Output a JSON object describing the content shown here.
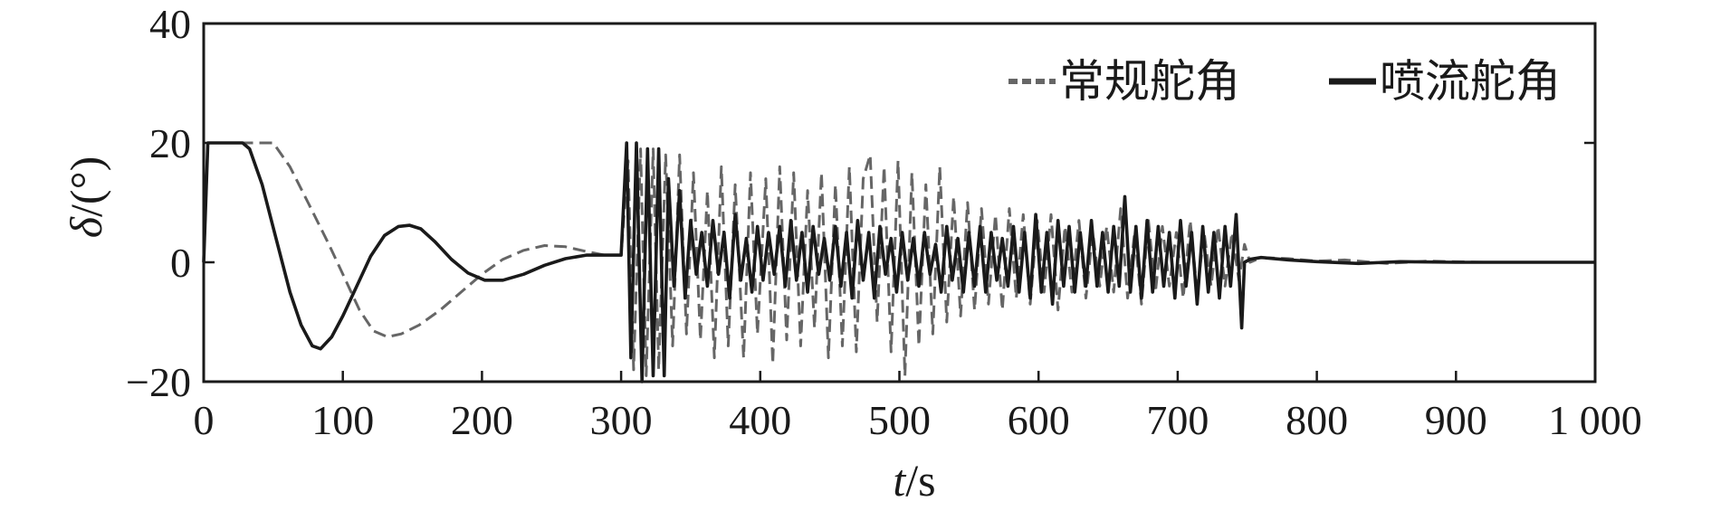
{
  "chart_data": {
    "type": "line",
    "xlabel": {
      "var": "t",
      "unit": "/s"
    },
    "ylabel": {
      "var": "δ",
      "unit": "/(°)"
    },
    "xlim": [
      0,
      1000
    ],
    "ylim": [
      -20,
      40
    ],
    "x_ticks": [
      0,
      100,
      200,
      300,
      400,
      500,
      600,
      700,
      800,
      900,
      1000
    ],
    "x_tick_labels": [
      "0",
      "100",
      "200",
      "300",
      "400",
      "500",
      "600",
      "700",
      "800",
      "900",
      "1 000"
    ],
    "y_ticks": [
      -20,
      0,
      20,
      40
    ],
    "y_tick_labels": [
      "−20",
      "0",
      "20",
      "40"
    ],
    "grid": false,
    "legend_position": "top-right",
    "series": [
      {
        "name": "常规舵角",
        "style": "dashed",
        "color": "#666666",
        "points": [
          [
            0,
            0
          ],
          [
            3,
            20
          ],
          [
            45,
            20
          ],
          [
            50,
            20
          ],
          [
            62,
            16
          ],
          [
            75,
            10
          ],
          [
            90,
            3
          ],
          [
            102,
            -3
          ],
          [
            112,
            -8
          ],
          [
            122,
            -11.5
          ],
          [
            132,
            -12.5
          ],
          [
            142,
            -12
          ],
          [
            155,
            -10.5
          ],
          [
            170,
            -8
          ],
          [
            185,
            -5
          ],
          [
            200,
            -2
          ],
          [
            215,
            0.5
          ],
          [
            230,
            2
          ],
          [
            245,
            2.8
          ],
          [
            260,
            2.6
          ],
          [
            275,
            1.8
          ],
          [
            288,
            1.2
          ],
          [
            300,
            1.2
          ],
          [
            305,
            17
          ],
          [
            309,
            -18
          ],
          [
            314,
            19
          ],
          [
            318,
            -19
          ],
          [
            323,
            19
          ],
          [
            327,
            -18
          ],
          [
            332,
            18
          ],
          [
            337,
            -14
          ],
          [
            342,
            18
          ],
          [
            347,
            -12
          ],
          [
            352,
            15
          ],
          [
            357,
            -13
          ],
          [
            362,
            12
          ],
          [
            367,
            -16
          ],
          [
            372,
            16
          ],
          [
            377,
            -14
          ],
          [
            382,
            13
          ],
          [
            388,
            -16
          ],
          [
            393,
            15
          ],
          [
            398,
            -12
          ],
          [
            404,
            14
          ],
          [
            409,
            -17
          ],
          [
            414,
            16
          ],
          [
            419,
            -13
          ],
          [
            424,
            15
          ],
          [
            429,
            -14
          ],
          [
            434,
            12
          ],
          [
            439,
            -11
          ],
          [
            444,
            15
          ],
          [
            449,
            -16
          ],
          [
            454,
            13
          ],
          [
            459,
            -14
          ],
          [
            464,
            16
          ],
          [
            469,
            -15
          ],
          [
            474,
            14
          ],
          [
            479,
            18
          ],
          [
            484,
            -10
          ],
          [
            489,
            16
          ],
          [
            494,
            -15
          ],
          [
            499,
            17
          ],
          [
            504,
            -19
          ],
          [
            509,
            15
          ],
          [
            514,
            -14
          ],
          [
            519,
            13
          ],
          [
            524,
            -12
          ],
          [
            529,
            16
          ],
          [
            534,
            -10
          ],
          [
            539,
            11
          ],
          [
            544,
            -9
          ],
          [
            549,
            10
          ],
          [
            554,
            -8
          ],
          [
            559,
            9
          ],
          [
            564,
            -7
          ],
          [
            569,
            8
          ],
          [
            574,
            -8
          ],
          [
            579,
            9
          ],
          [
            584,
            -6
          ],
          [
            589,
            8
          ],
          [
            594,
            -7
          ],
          [
            599,
            7
          ],
          [
            604,
            -5
          ],
          [
            609,
            8
          ],
          [
            614,
            -8
          ],
          [
            619,
            6
          ],
          [
            624,
            -5
          ],
          [
            629,
            7
          ],
          [
            634,
            -6
          ],
          [
            639,
            5
          ],
          [
            644,
            -4
          ],
          [
            649,
            6
          ],
          [
            654,
            -5
          ],
          [
            659,
            9
          ],
          [
            664,
            -6
          ],
          [
            669,
            5
          ],
          [
            674,
            -7
          ],
          [
            679,
            7
          ],
          [
            684,
            -5
          ],
          [
            689,
            6
          ],
          [
            694,
            -4
          ],
          [
            699,
            5
          ],
          [
            704,
            -6
          ],
          [
            709,
            7
          ],
          [
            714,
            -5
          ],
          [
            719,
            5
          ],
          [
            724,
            -4
          ],
          [
            729,
            6
          ],
          [
            734,
            -4
          ],
          [
            739,
            5
          ],
          [
            744,
            -3
          ],
          [
            748,
            3
          ],
          [
            752,
            0
          ],
          [
            760,
            0.8
          ],
          [
            780,
            0.6
          ],
          [
            800,
            0.2
          ],
          [
            820,
            0.4
          ],
          [
            850,
            -0.2
          ],
          [
            880,
            0.2
          ],
          [
            920,
            0
          ],
          [
            1000,
            0
          ]
        ]
      },
      {
        "name": "喷流舵角",
        "style": "solid",
        "color": "#1a1a1a",
        "points": [
          [
            0,
            0
          ],
          [
            3,
            20
          ],
          [
            28,
            20
          ],
          [
            33,
            19
          ],
          [
            42,
            13
          ],
          [
            52,
            4
          ],
          [
            62,
            -5
          ],
          [
            70,
            -10.5
          ],
          [
            78,
            -14
          ],
          [
            84,
            -14.5
          ],
          [
            92,
            -12.5
          ],
          [
            100,
            -9
          ],
          [
            110,
            -4
          ],
          [
            120,
            1
          ],
          [
            130,
            4.5
          ],
          [
            140,
            6
          ],
          [
            148,
            6.2
          ],
          [
            156,
            5.6
          ],
          [
            166,
            3.5
          ],
          [
            178,
            0.5
          ],
          [
            190,
            -1.8
          ],
          [
            202,
            -3
          ],
          [
            215,
            -3
          ],
          [
            230,
            -2
          ],
          [
            245,
            -0.5
          ],
          [
            260,
            0.6
          ],
          [
            275,
            1.2
          ],
          [
            300,
            1.2
          ],
          [
            304,
            20
          ],
          [
            307,
            -16
          ],
          [
            311,
            20
          ],
          [
            315,
            -20
          ],
          [
            319,
            19
          ],
          [
            323,
            -19
          ],
          [
            327,
            19
          ],
          [
            331,
            -19
          ],
          [
            334,
            14
          ],
          [
            338,
            -4
          ],
          [
            342,
            12
          ],
          [
            346,
            -6
          ],
          [
            350,
            7
          ],
          [
            354,
            -2
          ],
          [
            358,
            5
          ],
          [
            362,
            -4
          ],
          [
            366,
            7
          ],
          [
            370,
            -2
          ],
          [
            374,
            5
          ],
          [
            378,
            -6
          ],
          [
            382,
            8
          ],
          [
            386,
            -3
          ],
          [
            390,
            4
          ],
          [
            394,
            -5
          ],
          [
            398,
            6
          ],
          [
            402,
            -3
          ],
          [
            406,
            5
          ],
          [
            410,
            -2
          ],
          [
            414,
            6
          ],
          [
            418,
            -4
          ],
          [
            422,
            7
          ],
          [
            426,
            -3
          ],
          [
            430,
            5
          ],
          [
            434,
            -5
          ],
          [
            438,
            6
          ],
          [
            442,
            -2
          ],
          [
            446,
            4
          ],
          [
            450,
            -3
          ],
          [
            454,
            6
          ],
          [
            458,
            -4
          ],
          [
            462,
            5
          ],
          [
            466,
            -6
          ],
          [
            470,
            7
          ],
          [
            474,
            -3
          ],
          [
            478,
            5
          ],
          [
            482,
            -6
          ],
          [
            486,
            6
          ],
          [
            490,
            -2
          ],
          [
            494,
            4
          ],
          [
            498,
            -5
          ],
          [
            502,
            5
          ],
          [
            506,
            -3
          ],
          [
            510,
            4
          ],
          [
            514,
            -4
          ],
          [
            518,
            5
          ],
          [
            522,
            -2
          ],
          [
            526,
            3
          ],
          [
            530,
            -5
          ],
          [
            534,
            6
          ],
          [
            538,
            -3
          ],
          [
            542,
            4
          ],
          [
            546,
            -5
          ],
          [
            550,
            5
          ],
          [
            554,
            -4
          ],
          [
            558,
            6
          ],
          [
            562,
            -5
          ],
          [
            566,
            5
          ],
          [
            570,
            -3
          ],
          [
            574,
            4
          ],
          [
            578,
            -4
          ],
          [
            582,
            6
          ],
          [
            586,
            -5
          ],
          [
            590,
            5
          ],
          [
            594,
            -6
          ],
          [
            598,
            8
          ],
          [
            602,
            -5
          ],
          [
            606,
            5
          ],
          [
            610,
            -7
          ],
          [
            614,
            7
          ],
          [
            618,
            -4
          ],
          [
            622,
            6
          ],
          [
            626,
            -5
          ],
          [
            630,
            5
          ],
          [
            634,
            -4
          ],
          [
            638,
            7
          ],
          [
            642,
            -4
          ],
          [
            646,
            5
          ],
          [
            650,
            -5
          ],
          [
            654,
            6
          ],
          [
            658,
            -4
          ],
          [
            662,
            11
          ],
          [
            666,
            -5
          ],
          [
            670,
            6
          ],
          [
            674,
            -6
          ],
          [
            678,
            7
          ],
          [
            682,
            -5
          ],
          [
            686,
            6
          ],
          [
            690,
            -4
          ],
          [
            694,
            5
          ],
          [
            698,
            -6
          ],
          [
            702,
            7
          ],
          [
            706,
            -4
          ],
          [
            710,
            5
          ],
          [
            714,
            -7
          ],
          [
            718,
            6
          ],
          [
            722,
            -5
          ],
          [
            726,
            5
          ],
          [
            730,
            -6
          ],
          [
            734,
            6
          ],
          [
            738,
            -4
          ],
          [
            742,
            8
          ],
          [
            746,
            -11
          ],
          [
            748,
            0
          ],
          [
            752,
            0.5
          ],
          [
            760,
            0.8
          ],
          [
            780,
            0.4
          ],
          [
            800,
            0.1
          ],
          [
            830,
            -0.2
          ],
          [
            860,
            0.1
          ],
          [
            900,
            0
          ],
          [
            1000,
            0
          ]
        ]
      }
    ]
  }
}
